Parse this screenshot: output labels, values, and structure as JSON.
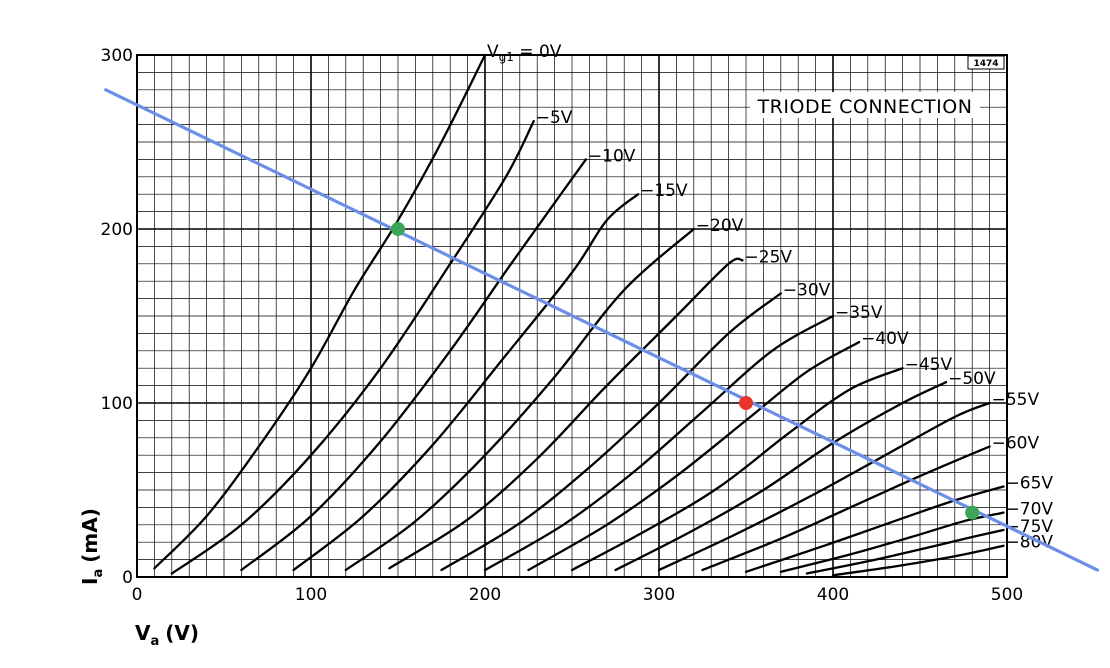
{
  "chart_data": {
    "type": "line",
    "title": "TRIODE CONNECTION",
    "chart_code": "1474",
    "xlabel": "V",
    "xlabel_sub": "a",
    "xlabel_unit": "(V)",
    "ylabel": "I",
    "ylabel_sub": "a",
    "ylabel_unit": "(mA)",
    "xlim": [
      0,
      500
    ],
    "ylim": [
      0,
      300
    ],
    "x_ticks": [
      0,
      100,
      200,
      300,
      400,
      500
    ],
    "y_ticks": [
      0,
      100,
      200,
      300
    ],
    "grid": true,
    "series": [
      {
        "name": "V",
        "name_sub": "g1",
        "name_suffix": " = 0V",
        "points": [
          [
            10,
            5
          ],
          [
            40,
            35
          ],
          [
            70,
            75
          ],
          [
            100,
            120
          ],
          [
            125,
            165
          ],
          [
            150,
            205
          ],
          [
            175,
            250
          ],
          [
            200,
            300
          ]
        ]
      },
      {
        "name": "−5V",
        "points": [
          [
            20,
            2
          ],
          [
            60,
            30
          ],
          [
            100,
            70
          ],
          [
            140,
            120
          ],
          [
            180,
            180
          ],
          [
            212,
            230
          ],
          [
            228,
            262
          ]
        ]
      },
      {
        "name": "−10V",
        "points": [
          [
            60,
            4
          ],
          [
            100,
            35
          ],
          [
            140,
            78
          ],
          [
            180,
            130
          ],
          [
            215,
            180
          ],
          [
            240,
            215
          ],
          [
            258,
            240
          ]
        ]
      },
      {
        "name": "−15V",
        "points": [
          [
            90,
            4
          ],
          [
            130,
            35
          ],
          [
            170,
            76
          ],
          [
            210,
            125
          ],
          [
            250,
            175
          ],
          [
            270,
            205
          ],
          [
            288,
            220
          ]
        ]
      },
      {
        "name": "−20V",
        "points": [
          [
            120,
            4
          ],
          [
            160,
            32
          ],
          [
            200,
            70
          ],
          [
            240,
            115
          ],
          [
            280,
            165
          ],
          [
            320,
            200
          ]
        ]
      },
      {
        "name": "−25V",
        "points": [
          [
            145,
            5
          ],
          [
            190,
            33
          ],
          [
            230,
            68
          ],
          [
            270,
            110
          ],
          [
            310,
            150
          ],
          [
            340,
            180
          ],
          [
            348,
            182
          ]
        ]
      },
      {
        "name": "−30V",
        "points": [
          [
            175,
            4
          ],
          [
            220,
            31
          ],
          [
            260,
            63
          ],
          [
            300,
            100
          ],
          [
            340,
            140
          ],
          [
            370,
            163
          ]
        ]
      },
      {
        "name": "−35V",
        "points": [
          [
            200,
            4
          ],
          [
            245,
            30
          ],
          [
            285,
            60
          ],
          [
            325,
            95
          ],
          [
            365,
            130
          ],
          [
            400,
            150
          ]
        ]
      },
      {
        "name": "−40V",
        "points": [
          [
            225,
            4
          ],
          [
            270,
            30
          ],
          [
            310,
            58
          ],
          [
            350,
            90
          ],
          [
            385,
            118
          ],
          [
            415,
            135
          ]
        ]
      },
      {
        "name": "−45V",
        "points": [
          [
            250,
            4
          ],
          [
            295,
            28
          ],
          [
            335,
            52
          ],
          [
            375,
            83
          ],
          [
            410,
            108
          ],
          [
            440,
            120
          ]
        ]
      },
      {
        "name": "−50V",
        "points": [
          [
            275,
            4
          ],
          [
            320,
            27
          ],
          [
            360,
            50
          ],
          [
            400,
            77
          ],
          [
            440,
            100
          ],
          [
            465,
            112
          ]
        ]
      },
      {
        "name": "−55V",
        "points": [
          [
            300,
            4
          ],
          [
            345,
            25
          ],
          [
            390,
            48
          ],
          [
            430,
            70
          ],
          [
            470,
            92
          ],
          [
            490,
            100
          ]
        ]
      },
      {
        "name": "−60V",
        "points": [
          [
            325,
            4
          ],
          [
            370,
            22
          ],
          [
            410,
            40
          ],
          [
            450,
            58
          ],
          [
            490,
            75
          ]
        ]
      },
      {
        "name": "−65V",
        "points": [
          [
            350,
            3
          ],
          [
            395,
            18
          ],
          [
            435,
            32
          ],
          [
            470,
            44
          ],
          [
            498,
            52
          ]
        ]
      },
      {
        "name": "−70V",
        "points": [
          [
            370,
            3
          ],
          [
            410,
            13
          ],
          [
            445,
            23
          ],
          [
            475,
            32
          ],
          [
            498,
            37
          ]
        ]
      },
      {
        "name": "−75V",
        "points": [
          [
            385,
            2
          ],
          [
            420,
            9
          ],
          [
            455,
            17
          ],
          [
            480,
            23
          ],
          [
            498,
            27
          ]
        ]
      },
      {
        "name": "−80V",
        "points": [
          [
            400,
            1
          ],
          [
            435,
            6
          ],
          [
            465,
            11
          ],
          [
            485,
            15
          ],
          [
            498,
            18
          ]
        ]
      }
    ],
    "load_line": {
      "color": "#6b8fe8",
      "points": [
        [
          -18,
          280
        ],
        [
          552,
          4
        ]
      ]
    },
    "markers": [
      {
        "color": "#3aa655",
        "x": 150,
        "y": 200
      },
      {
        "color": "#e8362e",
        "x": 350,
        "y": 100
      },
      {
        "color": "#3aa655",
        "x": 480,
        "y": 37
      }
    ]
  }
}
